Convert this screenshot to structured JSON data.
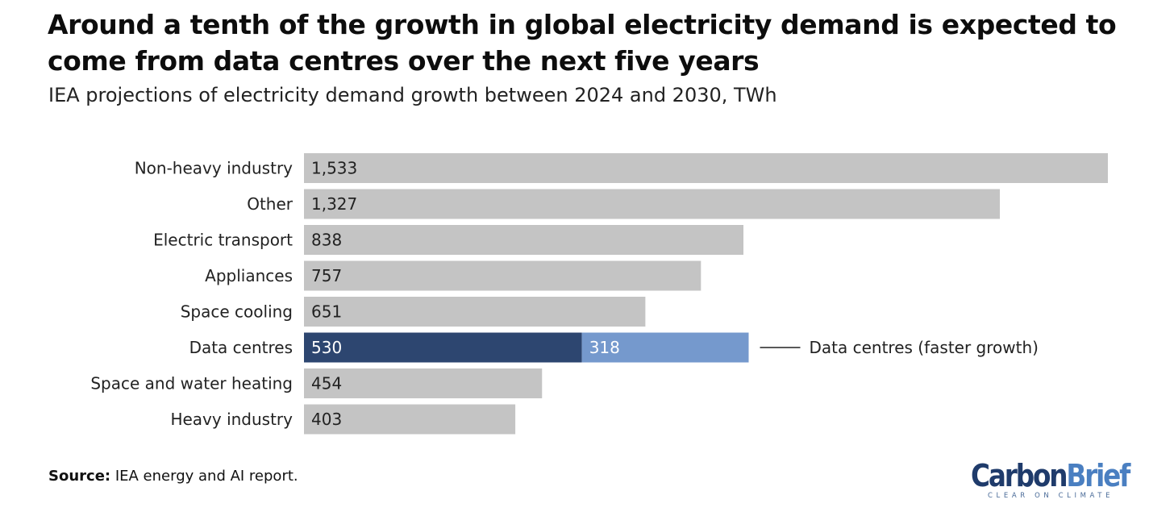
{
  "title": "Around a tenth of the growth in global electricity demand is expected to come from data centres over the next five years",
  "subtitle": "IEA projections of electricity demand growth between 2024 and 2030, TWh",
  "chart_data": {
    "type": "bar",
    "orientation": "horizontal",
    "title": "Around a tenth of the growth in global electricity demand is expected to come from data centres over the next five years",
    "subtitle": "IEA projections of electricity demand growth between 2024 and 2030, TWh",
    "xlabel": "",
    "ylabel": "",
    "grid": false,
    "categories": [
      "Non-heavy industry",
      "Other",
      "Electric transport",
      "Appliances",
      "Space cooling",
      "Data centres",
      "Space and water heating",
      "Heavy industry"
    ],
    "values": [
      1533,
      1327,
      838,
      757,
      651,
      530,
      454,
      403
    ],
    "value_labels": [
      "1,533",
      "1,327",
      "838",
      "757",
      "651",
      "530",
      "454",
      "403"
    ],
    "stacked_extra": {
      "category": "Data centres",
      "value": 318,
      "value_label": "318",
      "label": "Data centres (faster growth)"
    },
    "colors": {
      "default": "#c4c4c4",
      "highlight": "#2d4670",
      "extra": "#7599cd"
    },
    "highlight_category": "Data centres",
    "xlim": [
      0,
      1533
    ]
  },
  "source": {
    "label": "Source:",
    "text": "IEA energy and AI report."
  },
  "logo": {
    "word1": "Carbon",
    "word2": "Brief",
    "tagline": "CLEAR ON CLIMATE"
  }
}
